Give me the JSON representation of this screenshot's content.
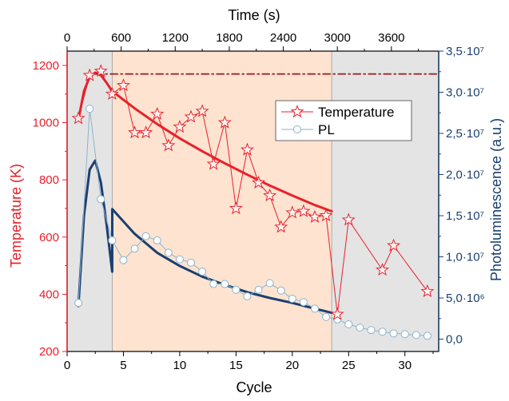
{
  "chart_data": {
    "type": "line",
    "title": "",
    "xlabel": "Cycle",
    "x2label": "Time (s)",
    "ylabel": "Temperature (K)",
    "y2label": "Photoluminescence (a.u.)",
    "xlim": [
      0,
      33
    ],
    "ylim": [
      200,
      1250
    ],
    "y2lim": [
      -1500000,
      35000000
    ],
    "x2lim": [
      0,
      4125
    ],
    "x_ticks": [
      "0",
      "5",
      "10",
      "15",
      "20",
      "25",
      "30"
    ],
    "x2_ticks": [
      "0",
      "600",
      "1200",
      "1800",
      "2400",
      "3000",
      "3600"
    ],
    "y_ticks": [
      "200",
      "400",
      "600",
      "800",
      "1000",
      "1200"
    ],
    "y2_ticks": [
      "0,0",
      "5,0·10⁶",
      "1,0·10⁷",
      "1,5·10⁷",
      "2,0·10⁷",
      "2,5·10⁷",
      "3,0·10⁷",
      "3,5·10⁷"
    ],
    "x_tick_values": [
      0,
      5,
      10,
      15,
      20,
      25,
      30
    ],
    "x2_tick_values": [
      0,
      600,
      1200,
      1800,
      2400,
      3000,
      3600
    ],
    "y_tick_values": [
      200,
      400,
      600,
      800,
      1000,
      1200
    ],
    "y2_tick_values": [
      0,
      5000000,
      10000000,
      15000000,
      20000000,
      25000000,
      30000000,
      35000000
    ],
    "legend_position": "top-right",
    "grid": false,
    "regions": [
      {
        "x_start": 0,
        "x_end": 4,
        "color": "#e4e4e4"
      },
      {
        "x_start": 4,
        "x_end": 23.5,
        "color": "#fde3d0"
      },
      {
        "x_start": 23.5,
        "x_end": 33,
        "color": "#e4e4e4"
      }
    ],
    "series": [
      {
        "name": "Temperature",
        "axis": "left",
        "color": "#e8212b",
        "marker": "star",
        "x": [
          1,
          2,
          3,
          4,
          5,
          6,
          7,
          8,
          9,
          10,
          11,
          12,
          13,
          14,
          15,
          16,
          17,
          18,
          19,
          20,
          21,
          22,
          23,
          24,
          25,
          28,
          29,
          32
        ],
        "values": [
          1015,
          1165,
          1180,
          1100,
          1130,
          965,
          965,
          1030,
          920,
          985,
          1020,
          1040,
          855,
          1000,
          700,
          905,
          790,
          745,
          635,
          685,
          690,
          670,
          675,
          330,
          660,
          485,
          570,
          410
        ]
      },
      {
        "name": "PL",
        "axis": "right",
        "color": "#8bb3cd",
        "marker": "circle",
        "x": [
          1,
          2,
          3,
          4,
          5,
          6,
          7,
          8,
          9,
          10,
          11,
          12,
          13,
          14,
          15,
          16,
          17,
          18,
          19,
          20,
          21,
          22,
          23,
          24,
          25,
          26,
          27,
          28,
          29,
          30,
          31,
          32
        ],
        "values": [
          4400000,
          28000000,
          17000000,
          12000000,
          9600000,
          11000000,
          12500000,
          12000000,
          10500000,
          9700000,
          9300000,
          8200000,
          6700000,
          6700000,
          6000000,
          5200000,
          6000000,
          6800000,
          5900000,
          4900000,
          4500000,
          3700000,
          2700000,
          2400000,
          1800000,
          1400000,
          1100000,
          900000,
          700000,
          600000,
          500000,
          400000
        ]
      }
    ],
    "fits": [
      {
        "axis": "left",
        "color": "#e8212b",
        "x": [
          1,
          1.5,
          2,
          2.5,
          3,
          3.5,
          4,
          6,
          8,
          10,
          12,
          14,
          16,
          18,
          20,
          22,
          23.5
        ],
        "values": [
          1010,
          1110,
          1160,
          1175,
          1165,
          1140,
          1110,
          1050,
          995,
          945,
          900,
          858,
          818,
          780,
          745,
          712,
          690
        ]
      },
      {
        "axis": "right",
        "color": "#1b3f70",
        "x": [
          1,
          1.5,
          2,
          2.5,
          3,
          3.5,
          4,
          4.01,
          6,
          8,
          10,
          12,
          14,
          16,
          18,
          20,
          22,
          23.5
        ],
        "values": [
          4000000,
          15000000,
          20600000,
          21700000,
          19000000,
          14000000,
          8200000,
          15800000,
          12800000,
          10500000,
          8900000,
          7600000,
          6600000,
          5700000,
          5000000,
          4400000,
          3700000,
          3200000
        ]
      },
      {
        "axis": "left",
        "color": "#9a1b1b",
        "style": "dash-dot",
        "x": [
          2.5,
          33
        ],
        "values": [
          1170,
          1170
        ]
      }
    ]
  }
}
